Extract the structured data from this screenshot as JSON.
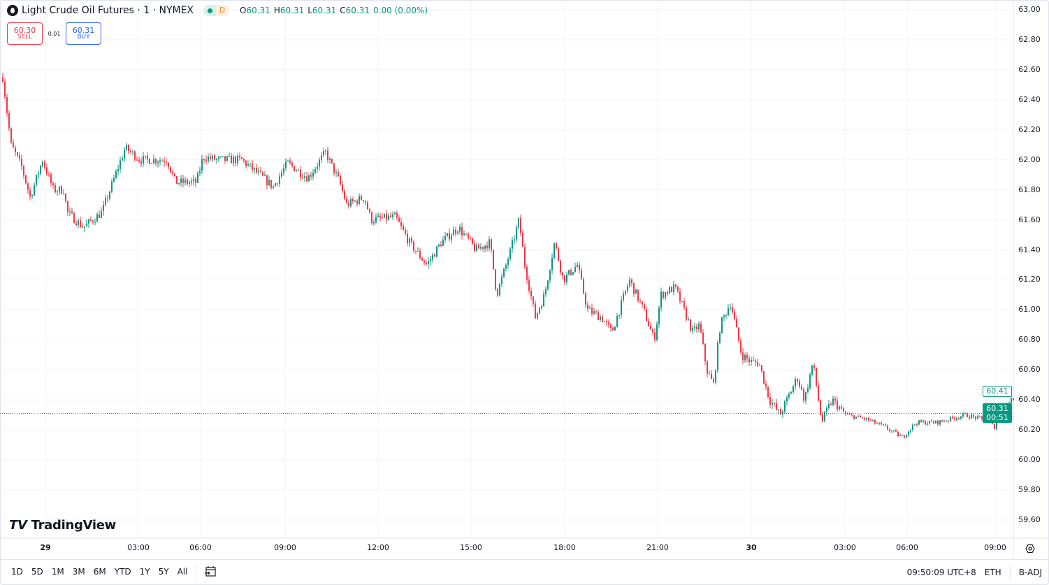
{
  "header": {
    "title": "Light Crude Oil Futures · 1 · NYMEX",
    "status_letter": "D",
    "ohlc": {
      "o_label": "O",
      "o": "60.31",
      "h_label": "H",
      "h": "60.31",
      "l_label": "L",
      "l": "60.31",
      "c_label": "C",
      "c": "60.31",
      "change": "0.00 (0.00%)"
    }
  },
  "trade": {
    "sell_price": "60.30",
    "sell_label": "SELL",
    "spread": "0.01",
    "buy_price": "60.31",
    "buy_label": "BUY"
  },
  "logo": "TradingView",
  "price_tags": {
    "high": "60.41",
    "last": "60.31",
    "countdown": "00:51"
  },
  "colors": {
    "up": "#089981",
    "down": "#f23645",
    "grid": "#f0f3fa",
    "last_line": "#089981"
  },
  "bottom": {
    "ranges": [
      "1D",
      "5D",
      "1M",
      "3M",
      "6M",
      "YTD",
      "1Y",
      "5Y",
      "All"
    ],
    "clock": "09:50:09 UTC+8",
    "session": "ETH",
    "adjust": "B-ADJ"
  },
  "chart_data": {
    "type": "candlestick",
    "title": "Light Crude Oil Futures · 1 · NYMEX",
    "interval": "1 minute",
    "grid": true,
    "y_ticks": [
      "63.00",
      "62.80",
      "62.60",
      "62.40",
      "62.20",
      "62.00",
      "61.80",
      "61.60",
      "61.40",
      "61.20",
      "61.00",
      "60.80",
      "60.60",
      "60.40",
      "60.20",
      "60.00",
      "59.80",
      "59.60"
    ],
    "ylim": [
      59.55,
      63.0
    ],
    "x_ticks": [
      "29",
      "03:00",
      "06:00",
      "09:00",
      "12:00",
      "15:00",
      "18:00",
      "21:00",
      "30",
      "03:00",
      "06:00",
      "09:00"
    ],
    "last_price": 60.31,
    "approx_close_path": [
      [
        "28 22:36",
        62.55
      ],
      [
        "28 22:52",
        62.1
      ],
      [
        "28 23:13",
        61.95
      ],
      [
        "28 23:29",
        61.75
      ],
      [
        "28 23:53",
        62.0
      ],
      [
        "29 00:14",
        61.8
      ],
      [
        "29 00:34",
        61.8
      ],
      [
        "29 00:41",
        61.65
      ],
      [
        "29 01:12",
        61.55
      ],
      [
        "29 01:48",
        61.65
      ],
      [
        "29 02:09",
        61.85
      ],
      [
        "29 02:33",
        62.08
      ],
      [
        "29 03:04",
        62.0
      ],
      [
        "29 04:21",
        62.0
      ],
      [
        "29 04:45",
        61.85
      ],
      [
        "29 05:46",
        61.85
      ],
      [
        "29 06:04",
        62.02
      ],
      [
        "29 06:34",
        62.0
      ],
      [
        "29 07:26",
        62.0
      ],
      [
        "29 08:04",
        61.9
      ],
      [
        "29 08:33",
        61.82
      ],
      [
        "29 09:03",
        61.98
      ],
      [
        "29 09:43",
        61.88
      ],
      [
        "29 10:17",
        62.05
      ],
      [
        "29 10:44",
        61.85
      ],
      [
        "29 10:58",
        61.7
      ],
      [
        "29 11:32",
        61.75
      ],
      [
        "29 11:45",
        61.6
      ],
      [
        "29 12:32",
        61.62
      ],
      [
        "29 12:59",
        61.45
      ],
      [
        "29 13:33",
        61.3
      ],
      [
        "29 14:01",
        61.45
      ],
      [
        "29 14:34",
        61.55
      ],
      [
        "29 15:08",
        61.4
      ],
      [
        "29 15:35",
        61.45
      ],
      [
        "29 15:48",
        61.1
      ],
      [
        "29 16:15",
        61.4
      ],
      [
        "29 16:31",
        61.6
      ],
      [
        "29 16:42",
        61.3
      ],
      [
        "29 17:02",
        60.95
      ],
      [
        "29 17:20",
        61.1
      ],
      [
        "29 17:39",
        61.45
      ],
      [
        "29 17:56",
        61.2
      ],
      [
        "29 18:23",
        61.3
      ],
      [
        "29 18:43",
        61.0
      ],
      [
        "29 19:10",
        60.95
      ],
      [
        "29 19:30",
        60.85
      ],
      [
        "29 20:04",
        61.2
      ],
      [
        "29 20:31",
        61.0
      ],
      [
        "29 20:52",
        60.8
      ],
      [
        "29 21:05",
        61.1
      ],
      [
        "29 21:32",
        61.15
      ],
      [
        "29 22:06",
        60.85
      ],
      [
        "29 22:19",
        60.9
      ],
      [
        "29 22:33",
        60.6
      ],
      [
        "29 22:46",
        60.5
      ],
      [
        "29 22:59",
        60.9
      ],
      [
        "29 23:19",
        61.05
      ],
      [
        "29 23:40",
        60.7
      ],
      [
        "30 00:00",
        60.65
      ],
      [
        "30 00:13",
        60.65
      ],
      [
        "30 00:34",
        60.4
      ],
      [
        "30 00:54",
        60.3
      ],
      [
        "30 01:27",
        60.55
      ],
      [
        "30 01:41",
        60.4
      ],
      [
        "30 01:57",
        60.65
      ],
      [
        "30 02:14",
        60.25
      ],
      [
        "30 02:34",
        60.4
      ],
      [
        "30 03:02",
        60.3
      ],
      [
        "30 04:03",
        60.27
      ],
      [
        "30 04:53",
        60.22
      ],
      [
        "30 05:44",
        60.15
      ],
      [
        "30 06:17",
        60.25
      ],
      [
        "30 07:00",
        60.25
      ],
      [
        "30 07:57",
        60.3
      ],
      [
        "30 08:33",
        60.27
      ],
      [
        "30 08:57",
        60.22
      ],
      [
        "30 09:08",
        60.35
      ],
      [
        "30 09:37",
        60.41
      ]
    ]
  }
}
